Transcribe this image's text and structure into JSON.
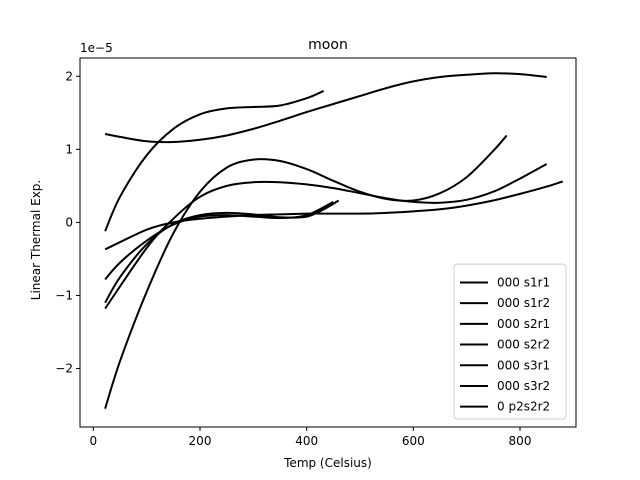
{
  "chart_data": {
    "type": "line",
    "title": "moon",
    "xlabel": "Temp (Celsius)",
    "ylabel": "Linear Thermal Exp.",
    "y_offset_label": "1e−5",
    "xlim": [
      -25,
      905
    ],
    "ylim": [
      -2.8,
      2.25
    ],
    "x_ticks": [
      0,
      200,
      400,
      600,
      800
    ],
    "x_tick_labels": [
      "0",
      "200",
      "400",
      "600",
      "800"
    ],
    "y_ticks": [
      -2,
      -1,
      0,
      1,
      2
    ],
    "y_tick_labels": [
      "−2",
      "−1",
      "0",
      "1",
      "2"
    ],
    "grid": false,
    "legend_position": "lower-right",
    "line_color": "#000000",
    "series": [
      {
        "name": "000 s1r1",
        "x": [
          22,
          50,
          100,
          150,
          200,
          250,
          300,
          350,
          400,
          432
        ],
        "y": [
          -0.12,
          0.35,
          0.92,
          1.28,
          1.48,
          1.56,
          1.58,
          1.6,
          1.7,
          1.8
        ]
      },
      {
        "name": "000 s1r2",
        "x": [
          22,
          50,
          100,
          150,
          200,
          250,
          300,
          350,
          400,
          450,
          500,
          550,
          600,
          650,
          700,
          750,
          800,
          850
        ],
        "y": [
          1.21,
          1.17,
          1.11,
          1.1,
          1.13,
          1.19,
          1.28,
          1.39,
          1.51,
          1.62,
          1.73,
          1.84,
          1.93,
          1.99,
          2.02,
          2.04,
          2.03,
          1.99
        ]
      },
      {
        "name": "000 s2r1",
        "x": [
          22,
          50,
          100,
          150,
          200,
          250,
          300,
          350,
          400,
          450,
          500,
          550,
          600,
          650,
          700,
          750,
          775
        ],
        "y": [
          -2.55,
          -1.9,
          -0.95,
          -0.15,
          0.42,
          0.75,
          0.86,
          0.84,
          0.73,
          0.57,
          0.42,
          0.32,
          0.3,
          0.4,
          0.62,
          0.98,
          1.19
        ]
      },
      {
        "name": "000 s2r2",
        "x": [
          22,
          100,
          150,
          200,
          250,
          300,
          350,
          400,
          450,
          500,
          550,
          600,
          650,
          700,
          750,
          800,
          850
        ],
        "y": [
          -1.18,
          -0.35,
          0.05,
          0.35,
          0.5,
          0.55,
          0.55,
          0.52,
          0.47,
          0.4,
          0.33,
          0.28,
          0.27,
          0.31,
          0.42,
          0.6,
          0.8
        ]
      },
      {
        "name": "000 s3r1",
        "x": [
          22,
          50,
          100,
          150,
          200,
          250,
          300,
          350,
          400,
          432,
          460
        ],
        "y": [
          -1.1,
          -0.75,
          -0.3,
          -0.02,
          0.1,
          0.13,
          0.11,
          0.07,
          0.08,
          0.18,
          0.3
        ]
      },
      {
        "name": "000 s3r2",
        "x": [
          22,
          50,
          100,
          150,
          200,
          250,
          300,
          350,
          400,
          450
        ],
        "y": [
          -0.78,
          -0.55,
          -0.25,
          -0.03,
          0.08,
          0.1,
          0.08,
          0.06,
          0.1,
          0.28
        ]
      },
      {
        "name": "0 p2s2r2",
        "x": [
          22,
          100,
          150,
          200,
          250,
          300,
          350,
          400,
          450,
          500,
          550,
          600,
          650,
          700,
          750,
          800,
          850,
          880
        ],
        "y": [
          -0.37,
          -0.1,
          0.0,
          0.05,
          0.08,
          0.1,
          0.11,
          0.12,
          0.12,
          0.12,
          0.13,
          0.15,
          0.18,
          0.23,
          0.3,
          0.39,
          0.49,
          0.56
        ]
      }
    ]
  }
}
